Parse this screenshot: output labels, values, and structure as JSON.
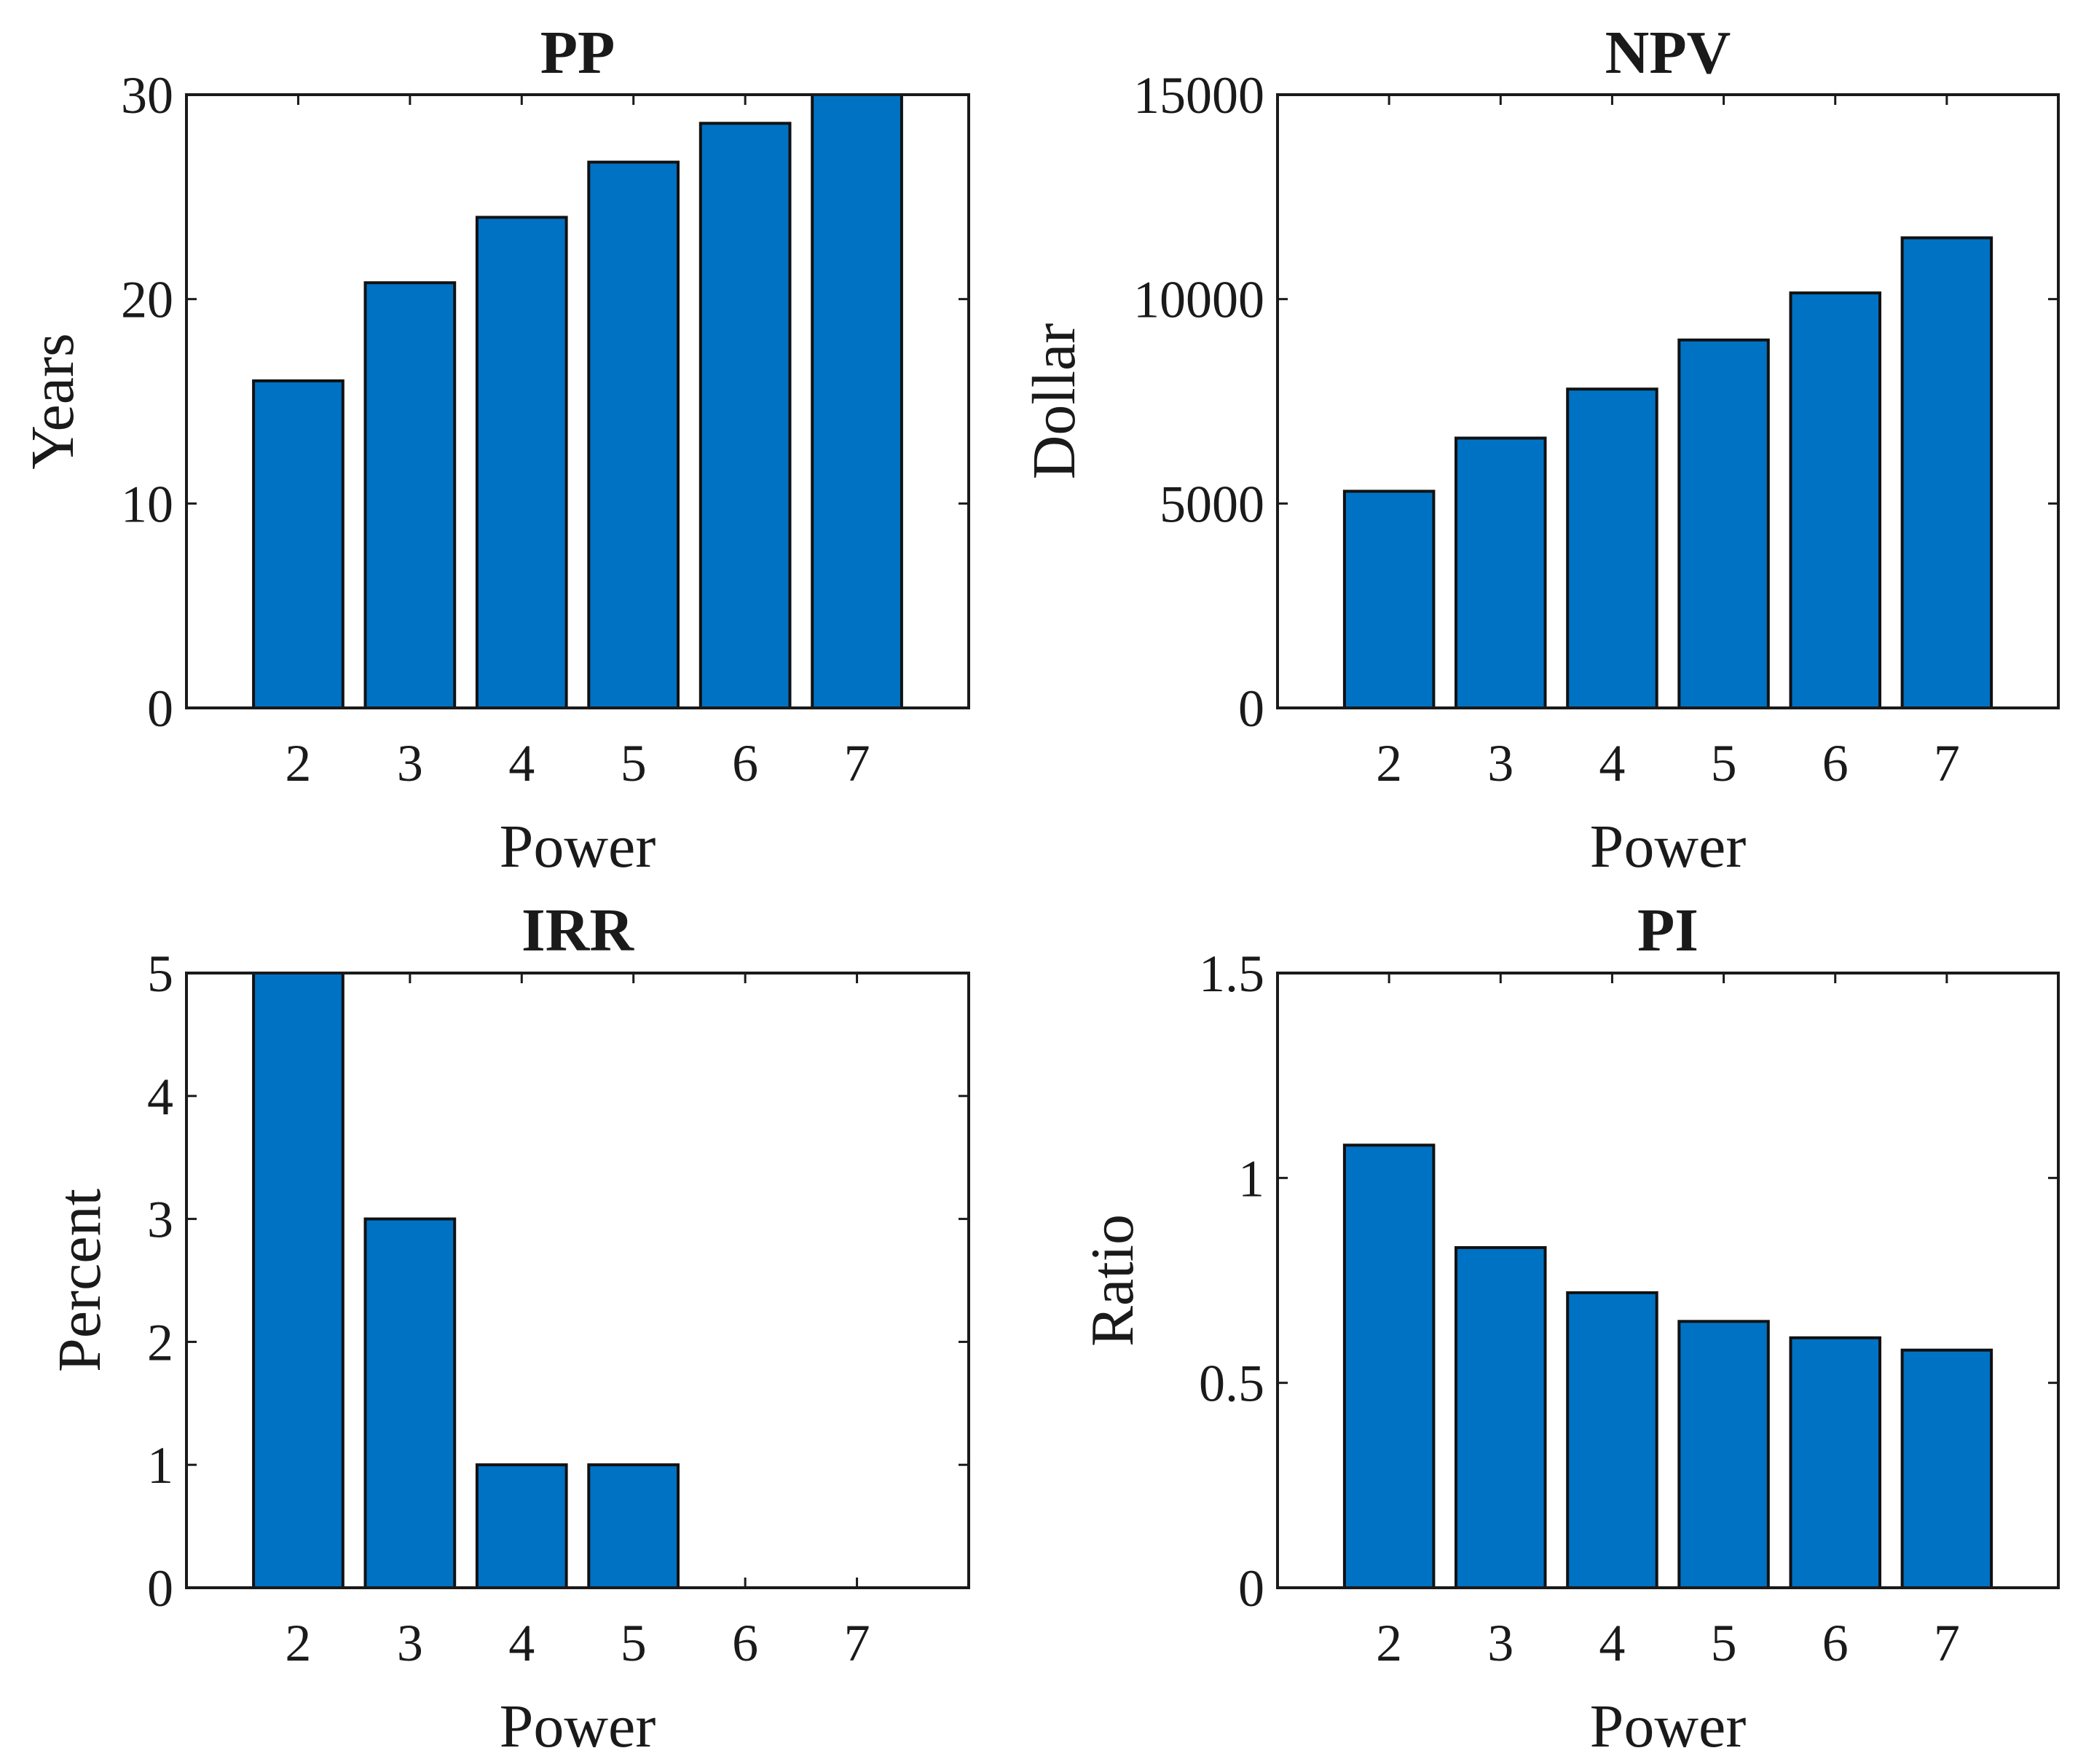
{
  "colors": {
    "bar_fill": "#0072C4",
    "bar_stroke": "#111111",
    "axis": "#1a1a1a",
    "background": "#ffffff"
  },
  "chart_data": [
    {
      "type": "bar",
      "title": "PP",
      "xlabel": "Power",
      "ylabel": "Years",
      "categories": [
        "2",
        "3",
        "4",
        "5",
        "6",
        "7"
      ],
      "values": [
        16,
        20.8,
        24,
        26.7,
        28.6,
        30
      ],
      "xlim": [
        1,
        8
      ],
      "ylim": [
        0,
        30
      ],
      "yticks": [
        "0",
        "10",
        "20",
        "30"
      ],
      "grid": false,
      "legend": false
    },
    {
      "type": "bar",
      "title": "NPV",
      "xlabel": "Power",
      "ylabel": "Dollar",
      "categories": [
        "2",
        "3",
        "4",
        "5",
        "6",
        "7"
      ],
      "values": [
        5300,
        6600,
        7800,
        9000,
        10150,
        11500
      ],
      "xlim": [
        1,
        8
      ],
      "ylim": [
        0,
        15000
      ],
      "yticks": [
        "0",
        "5000",
        "10000",
        "15000"
      ],
      "grid": false,
      "legend": false
    },
    {
      "type": "bar",
      "title": "IRR",
      "xlabel": "Power",
      "ylabel": "Percent",
      "categories": [
        "2",
        "3",
        "4",
        "5",
        "6",
        "7"
      ],
      "values": [
        5,
        3,
        1,
        1,
        0,
        0
      ],
      "xlim": [
        1,
        8
      ],
      "ylim": [
        0,
        5
      ],
      "yticks": [
        "0",
        "1",
        "2",
        "3",
        "4",
        "5"
      ],
      "grid": false,
      "legend": false
    },
    {
      "type": "bar",
      "title": "PI",
      "xlabel": "Power",
      "ylabel": "Ratio",
      "categories": [
        "2",
        "3",
        "4",
        "5",
        "6",
        "7"
      ],
      "values": [
        1.08,
        0.83,
        0.72,
        0.65,
        0.61,
        0.58
      ],
      "xlim": [
        1,
        8
      ],
      "ylim": [
        0,
        1.5
      ],
      "yticks": [
        "0",
        "0.5",
        "1",
        "1.5"
      ],
      "grid": false,
      "legend": false
    }
  ]
}
